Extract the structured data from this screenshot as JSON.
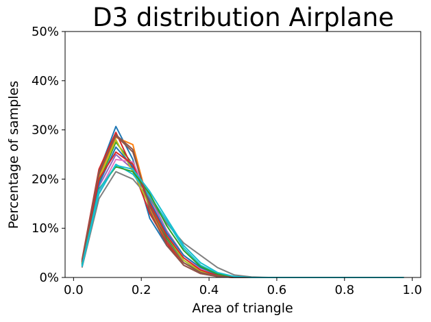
{
  "chart_data": {
    "type": "line",
    "title": "D3 distribution Airplane",
    "xlabel": "Area of triangle",
    "ylabel": "Percentage of samples",
    "xlim": [
      -0.025,
      1.025
    ],
    "ylim": [
      0,
      50
    ],
    "x_ticks": [
      0.0,
      0.2,
      0.4,
      0.6,
      0.8,
      1.0
    ],
    "x_tick_labels": [
      "0.0",
      "0.2",
      "0.4",
      "0.6",
      "0.8",
      "1.0"
    ],
    "y_ticks": [
      0,
      10,
      20,
      30,
      40,
      50
    ],
    "y_tick_labels": [
      "0%",
      "10%",
      "20%",
      "30%",
      "40%",
      "50%"
    ],
    "grid": false,
    "legend": "none",
    "x": [
      0.025,
      0.075,
      0.125,
      0.175,
      0.225,
      0.275,
      0.325,
      0.375,
      0.425,
      0.475,
      0.525,
      0.575,
      0.625,
      0.675,
      0.725,
      0.775,
      0.825,
      0.875,
      0.925,
      0.975
    ],
    "series": [
      {
        "color": "#1f77b4",
        "values": [
          3.2,
          21.5,
          30.7,
          24.0,
          12.0,
          6.5,
          3.0,
          1.2,
          0.3,
          0.1,
          0.0,
          0.0,
          0.0,
          0.0,
          0.0,
          0.0,
          0.0,
          0.0,
          0.0,
          0.0
        ]
      },
      {
        "color": "#ff7f0e",
        "values": [
          3.0,
          20.5,
          28.5,
          27.0,
          14.0,
          7.0,
          3.0,
          1.0,
          0.2,
          0.0,
          0.0,
          0.0,
          0.0,
          0.0,
          0.0,
          0.0,
          0.0,
          0.0,
          0.0,
          0.0
        ]
      },
      {
        "color": "#2ca02c",
        "values": [
          2.8,
          19.5,
          27.5,
          23.0,
          15.0,
          8.0,
          3.5,
          1.2,
          0.3,
          0.1,
          0.0,
          0.0,
          0.0,
          0.0,
          0.0,
          0.0,
          0.0,
          0.0,
          0.0,
          0.0
        ]
      },
      {
        "color": "#d62728",
        "values": [
          3.6,
          22.0,
          29.5,
          22.0,
          13.0,
          7.0,
          2.5,
          0.8,
          0.2,
          0.0,
          0.0,
          0.0,
          0.0,
          0.0,
          0.0,
          0.0,
          0.0,
          0.0,
          0.0,
          0.0
        ]
      },
      {
        "color": "#9467bd",
        "values": [
          2.5,
          18.5,
          25.0,
          22.0,
          16.5,
          9.5,
          4.5,
          1.8,
          0.5,
          0.1,
          0.0,
          0.0,
          0.0,
          0.0,
          0.0,
          0.0,
          0.0,
          0.0,
          0.0,
          0.0
        ]
      },
      {
        "color": "#8c564b",
        "values": [
          3.4,
          21.0,
          29.0,
          26.0,
          13.5,
          6.5,
          2.5,
          0.8,
          0.2,
          0.0,
          0.0,
          0.0,
          0.0,
          0.0,
          0.0,
          0.0,
          0.0,
          0.0,
          0.0,
          0.0
        ]
      },
      {
        "color": "#e377c2",
        "values": [
          2.3,
          17.5,
          24.0,
          23.5,
          16.0,
          9.0,
          4.5,
          1.8,
          0.6,
          0.1,
          0.0,
          0.0,
          0.0,
          0.0,
          0.0,
          0.0,
          0.0,
          0.0,
          0.0,
          0.0
        ]
      },
      {
        "color": "#7f7f7f",
        "values": [
          2.0,
          16.0,
          21.5,
          20.0,
          16.0,
          11.0,
          7.0,
          4.5,
          2.0,
          0.5,
          0.1,
          0.0,
          0.0,
          0.0,
          0.0,
          0.0,
          0.0,
          0.0,
          0.0,
          0.0
        ]
      },
      {
        "color": "#bcbd22",
        "values": [
          2.9,
          20.0,
          28.0,
          21.5,
          14.5,
          8.5,
          3.5,
          1.3,
          0.3,
          0.1,
          0.0,
          0.0,
          0.0,
          0.0,
          0.0,
          0.0,
          0.0,
          0.0,
          0.0,
          0.0
        ]
      },
      {
        "color": "#17becf",
        "values": [
          2.2,
          17.0,
          23.0,
          21.0,
          16.5,
          11.5,
          6.0,
          2.5,
          0.8,
          0.2,
          0.0,
          0.0,
          0.0,
          0.0,
          0.0,
          0.0,
          0.0,
          0.0,
          0.0,
          0.0
        ]
      },
      {
        "color": "#1f77b4",
        "values": [
          2.7,
          19.0,
          26.5,
          22.5,
          15.5,
          9.0,
          4.5,
          2.0,
          0.6,
          0.1,
          0.0,
          0.0,
          0.0,
          0.0,
          0.0,
          0.0,
          0.0,
          0.0,
          0.0,
          0.0
        ]
      },
      {
        "color": "#d62728",
        "values": [
          3.1,
          20.0,
          25.5,
          23.0,
          15.0,
          8.5,
          4.0,
          1.5,
          0.4,
          0.1,
          0.0,
          0.0,
          0.0,
          0.0,
          0.0,
          0.0,
          0.0,
          0.0,
          0.0,
          0.0
        ]
      },
      {
        "color": "#2ca02c",
        "values": [
          2.6,
          18.0,
          22.5,
          21.5,
          17.0,
          10.5,
          5.5,
          2.2,
          0.7,
          0.1,
          0.0,
          0.0,
          0.0,
          0.0,
          0.0,
          0.0,
          0.0,
          0.0,
          0.0,
          0.0
        ]
      },
      {
        "color": "#8c564b",
        "values": [
          3.3,
          21.5,
          28.8,
          25.5,
          14.5,
          7.5,
          3.0,
          1.0,
          0.3,
          0.0,
          0.0,
          0.0,
          0.0,
          0.0,
          0.0,
          0.0,
          0.0,
          0.0,
          0.0,
          0.0
        ]
      },
      {
        "color": "#17becf",
        "values": [
          2.4,
          17.8,
          22.8,
          22.0,
          17.5,
          12.0,
          6.5,
          3.0,
          1.0,
          0.2,
          0.0,
          0.0,
          0.0,
          0.0,
          0.0,
          0.0,
          0.0,
          0.0,
          0.0,
          0.0
        ]
      }
    ]
  }
}
